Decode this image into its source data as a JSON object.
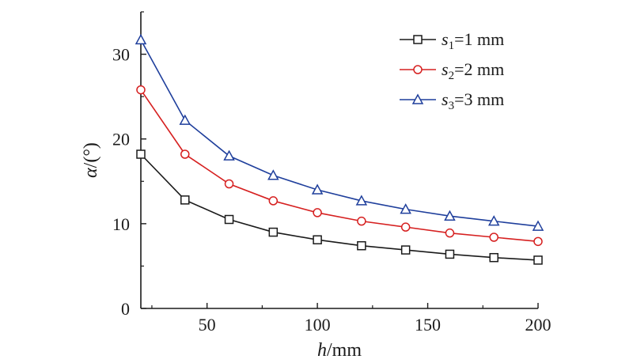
{
  "chart_data": {
    "type": "line",
    "title": "",
    "xlabel": {
      "var": "h",
      "unit": "/mm"
    },
    "ylabel": {
      "var": "α",
      "unit": "/(°)"
    },
    "xlim": [
      20,
      200
    ],
    "ylim": [
      0,
      35
    ],
    "xticks": [
      50,
      100,
      150,
      200
    ],
    "yticks": [
      0,
      10,
      20,
      30
    ],
    "grid": false,
    "legend_position": "top-right",
    "x": [
      20,
      40,
      60,
      80,
      100,
      120,
      140,
      160,
      180,
      200
    ],
    "series": [
      {
        "name": "s1=1 mm",
        "legend": {
          "var": "s",
          "sub": "1",
          "rest": "=1 mm"
        },
        "color": "#1a1a1a",
        "marker": "square",
        "values": [
          18.2,
          12.8,
          10.5,
          9.0,
          8.1,
          7.4,
          6.9,
          6.4,
          6.0,
          5.7
        ]
      },
      {
        "name": "s2=2 mm",
        "legend": {
          "var": "s",
          "sub": "2",
          "rest": "=2 mm"
        },
        "color": "#d62020",
        "marker": "circle",
        "values": [
          25.8,
          18.2,
          14.7,
          12.7,
          11.3,
          10.3,
          9.6,
          8.9,
          8.4,
          7.9
        ]
      },
      {
        "name": "s3=3 mm",
        "legend": {
          "var": "s",
          "sub": "3",
          "rest": "=3 mm"
        },
        "color": "#1f3f9c",
        "marker": "triangle",
        "values": [
          31.7,
          22.2,
          18.0,
          15.7,
          14.0,
          12.7,
          11.7,
          10.9,
          10.3,
          9.7
        ]
      }
    ]
  }
}
